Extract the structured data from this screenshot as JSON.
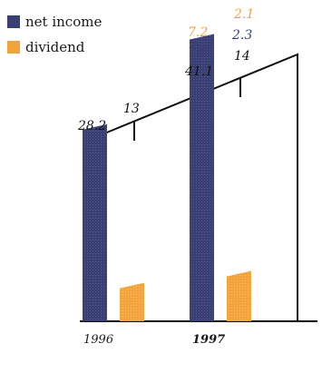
{
  "chart_data": {
    "type": "bar",
    "categories": [
      "1996",
      "1997"
    ],
    "series": [
      {
        "name": "net income",
        "color": "#3a3f73",
        "values": [
          28.2,
          41.1
        ]
      },
      {
        "name": "dividend",
        "color": "#f2a33a",
        "values": [
          5.5,
          7.2
        ]
      }
    ],
    "legend": "top-left",
    "grid": false,
    "annotations": [
      {
        "text": "28.2",
        "color": "#111111"
      },
      {
        "text": "13",
        "color": "#111111"
      },
      {
        "text": "7.2",
        "color": "#f2a33a"
      },
      {
        "text": "7.9",
        "color": "#3a3f73"
      },
      {
        "text": "41.1",
        "color": "#111111"
      },
      {
        "text": "2.1",
        "color": "#f2a33a"
      },
      {
        "text": "2.3",
        "color": "#3a3f73"
      },
      {
        "text": "14",
        "color": "#111111"
      }
    ]
  }
}
